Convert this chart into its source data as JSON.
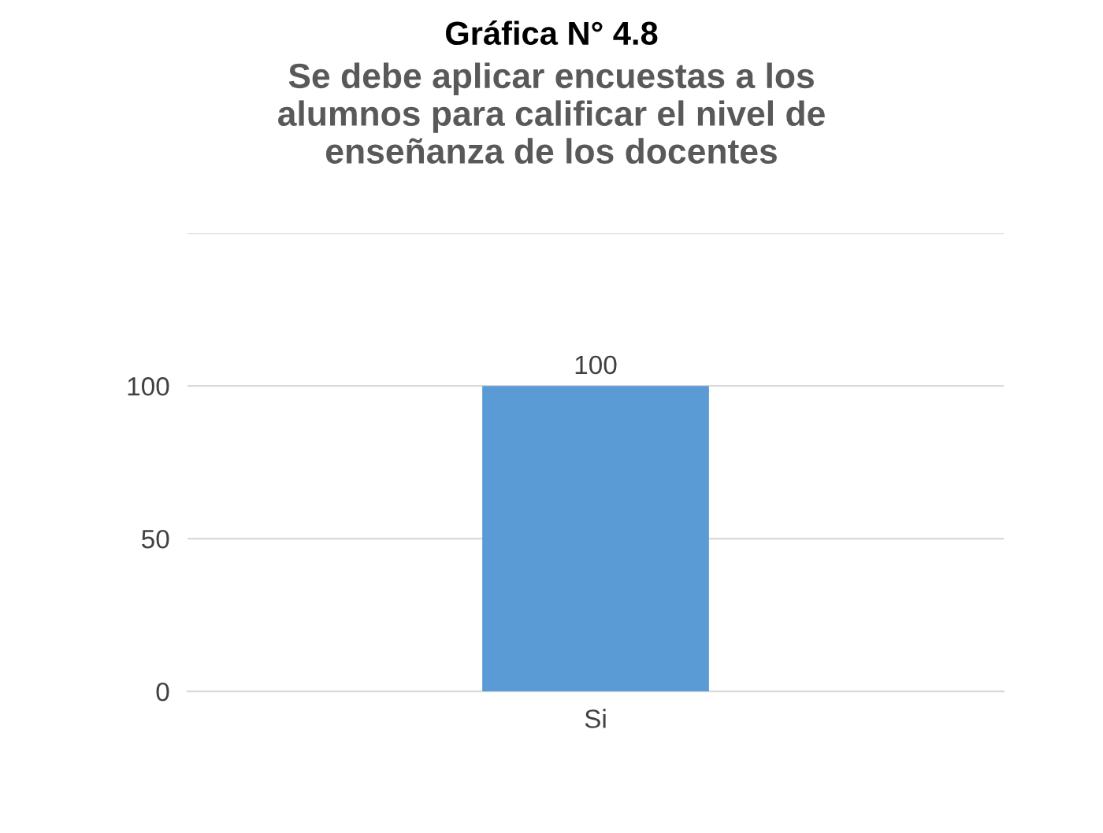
{
  "chart_data": {
    "type": "bar",
    "title": "Se debe aplicar encuestas a los\nalumnos para calificar el nivel de\nenseñanza de los docentes",
    "annotations": [
      "Gráfica N° 4.8"
    ],
    "categories": [
      "Si"
    ],
    "values": [
      100
    ],
    "color": "#5b9bd5",
    "ylim": [
      0,
      150
    ],
    "yticks": [
      0,
      50,
      100,
      {
        "value": 150,
        "label": null
      }
    ],
    "grid": "y",
    "data_labels": true
  }
}
